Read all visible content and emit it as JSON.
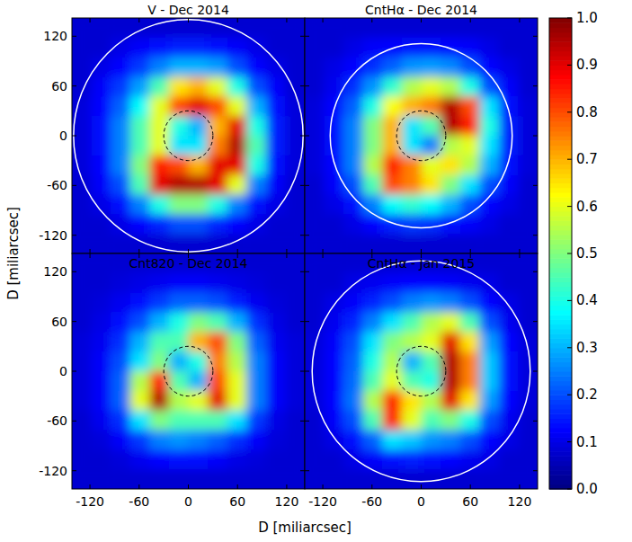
{
  "chart_data": {
    "type": "heatmap",
    "xlabel": "D [miliarcsec]",
    "ylabel": "D [miliarcsec]",
    "xlim": [
      -142,
      142
    ],
    "ylim": [
      -142,
      142
    ],
    "xticks": [
      -120,
      -60,
      0,
      60,
      120
    ],
    "yticks": [
      -120,
      -60,
      0,
      60,
      120
    ],
    "colorbar_range": [
      0,
      1
    ],
    "colorbar_ticks": [
      {
        "value": 0,
        "label": "0.0"
      },
      {
        "value": 0.1,
        "label": "0.1"
      },
      {
        "value": 0.2,
        "label": "0.2"
      },
      {
        "value": 0.3,
        "label": "0.3"
      },
      {
        "value": 0.4,
        "label": "0.4"
      },
      {
        "value": 0.5,
        "label": "0.5"
      },
      {
        "value": 0.6,
        "label": "0.6"
      },
      {
        "value": 0.7,
        "label": "0.7"
      },
      {
        "value": 0.8,
        "label": "0.8"
      },
      {
        "value": 0.9,
        "label": "0.9"
      },
      {
        "value": 1,
        "label": "1.0"
      }
    ],
    "panels": [
      {
        "title": "V - Dec 2014",
        "circle_radius": 140,
        "mask_radius": 30,
        "cells": [
          [
            0.08,
            0.08,
            0.08,
            0.08,
            0.08,
            0.08,
            0.08,
            0.08,
            0.08,
            0.08,
            0.08,
            0.08
          ],
          [
            0.08,
            0.08,
            0.1,
            0.12,
            0.14,
            0.15,
            0.15,
            0.14,
            0.12,
            0.1,
            0.08,
            0.08
          ],
          [
            0.08,
            0.1,
            0.13,
            0.18,
            0.25,
            0.3,
            0.3,
            0.28,
            0.2,
            0.13,
            0.1,
            0.08
          ],
          [
            0.08,
            0.12,
            0.18,
            0.28,
            0.45,
            0.65,
            0.7,
            0.6,
            0.4,
            0.2,
            0.12,
            0.08
          ],
          [
            0.09,
            0.13,
            0.22,
            0.38,
            0.6,
            0.8,
            0.9,
            0.8,
            0.6,
            0.3,
            0.14,
            0.09
          ],
          [
            0.09,
            0.14,
            0.25,
            0.45,
            0.6,
            0.4,
            0.3,
            0.7,
            0.9,
            0.4,
            0.15,
            0.09
          ],
          [
            0.09,
            0.14,
            0.25,
            0.45,
            0.6,
            0.35,
            0.35,
            0.75,
            0.95,
            0.45,
            0.15,
            0.09
          ],
          [
            0.09,
            0.13,
            0.25,
            0.5,
            0.85,
            0.8,
            0.7,
            0.9,
            0.9,
            0.4,
            0.14,
            0.09
          ],
          [
            0.08,
            0.12,
            0.2,
            0.45,
            0.9,
            0.95,
            0.95,
            0.9,
            0.6,
            0.25,
            0.12,
            0.08
          ],
          [
            0.08,
            0.1,
            0.14,
            0.25,
            0.4,
            0.5,
            0.5,
            0.4,
            0.25,
            0.14,
            0.1,
            0.08
          ],
          [
            0.08,
            0.08,
            0.1,
            0.13,
            0.16,
            0.2,
            0.2,
            0.16,
            0.13,
            0.1,
            0.08,
            0.08
          ],
          [
            0.08,
            0.08,
            0.08,
            0.08,
            0.08,
            0.08,
            0.08,
            0.08,
            0.08,
            0.08,
            0.08,
            0.08
          ]
        ]
      },
      {
        "title": "CntHα - Dec 2014",
        "circle_radius": 111,
        "mask_radius": 30,
        "cells": [
          [
            0.08,
            0.08,
            0.08,
            0.08,
            0.08,
            0.08,
            0.08,
            0.08,
            0.08,
            0.08,
            0.08,
            0.08
          ],
          [
            0.08,
            0.08,
            0.1,
            0.12,
            0.13,
            0.14,
            0.14,
            0.13,
            0.12,
            0.1,
            0.08,
            0.08
          ],
          [
            0.08,
            0.1,
            0.13,
            0.17,
            0.22,
            0.27,
            0.28,
            0.26,
            0.2,
            0.13,
            0.1,
            0.08
          ],
          [
            0.08,
            0.11,
            0.17,
            0.27,
            0.42,
            0.55,
            0.6,
            0.55,
            0.4,
            0.2,
            0.12,
            0.08
          ],
          [
            0.09,
            0.13,
            0.22,
            0.4,
            0.62,
            0.7,
            0.75,
            0.95,
            0.8,
            0.35,
            0.14,
            0.09
          ],
          [
            0.09,
            0.14,
            0.25,
            0.5,
            0.7,
            0.35,
            0.45,
            0.95,
            0.85,
            0.4,
            0.15,
            0.09
          ],
          [
            0.09,
            0.14,
            0.25,
            0.5,
            0.7,
            0.35,
            0.25,
            0.55,
            0.6,
            0.35,
            0.15,
            0.09
          ],
          [
            0.09,
            0.13,
            0.25,
            0.55,
            0.85,
            0.75,
            0.6,
            0.65,
            0.55,
            0.3,
            0.14,
            0.09
          ],
          [
            0.08,
            0.12,
            0.2,
            0.45,
            0.8,
            0.75,
            0.65,
            0.5,
            0.35,
            0.2,
            0.12,
            0.08
          ],
          [
            0.08,
            0.1,
            0.14,
            0.25,
            0.38,
            0.42,
            0.38,
            0.3,
            0.2,
            0.13,
            0.1,
            0.08
          ],
          [
            0.08,
            0.08,
            0.1,
            0.13,
            0.16,
            0.18,
            0.17,
            0.14,
            0.12,
            0.1,
            0.08,
            0.08
          ],
          [
            0.08,
            0.08,
            0.08,
            0.08,
            0.08,
            0.08,
            0.08,
            0.08,
            0.08,
            0.08,
            0.08,
            0.08
          ]
        ]
      },
      {
        "title": "Cnt820 - Dec 2014",
        "circle_radius": null,
        "mask_radius": 30,
        "cells": [
          [
            0.08,
            0.08,
            0.08,
            0.08,
            0.08,
            0.08,
            0.08,
            0.08,
            0.08,
            0.08,
            0.08,
            0.08
          ],
          [
            0.08,
            0.08,
            0.09,
            0.1,
            0.11,
            0.12,
            0.12,
            0.11,
            0.1,
            0.09,
            0.08,
            0.08
          ],
          [
            0.08,
            0.09,
            0.11,
            0.14,
            0.18,
            0.22,
            0.22,
            0.2,
            0.15,
            0.11,
            0.09,
            0.08
          ],
          [
            0.08,
            0.1,
            0.14,
            0.2,
            0.3,
            0.4,
            0.5,
            0.45,
            0.3,
            0.17,
            0.1,
            0.08
          ],
          [
            0.09,
            0.11,
            0.17,
            0.3,
            0.45,
            0.45,
            0.7,
            0.8,
            0.5,
            0.22,
            0.11,
            0.09
          ],
          [
            0.09,
            0.12,
            0.2,
            0.35,
            0.5,
            0.3,
            0.4,
            0.75,
            0.55,
            0.25,
            0.12,
            0.09
          ],
          [
            0.09,
            0.12,
            0.22,
            0.55,
            0.85,
            0.45,
            0.3,
            0.8,
            0.6,
            0.25,
            0.12,
            0.09
          ],
          [
            0.09,
            0.12,
            0.22,
            0.6,
            0.95,
            0.55,
            0.6,
            0.9,
            0.6,
            0.25,
            0.12,
            0.09
          ],
          [
            0.08,
            0.11,
            0.17,
            0.35,
            0.5,
            0.45,
            0.45,
            0.45,
            0.35,
            0.18,
            0.1,
            0.08
          ],
          [
            0.08,
            0.09,
            0.12,
            0.18,
            0.25,
            0.27,
            0.25,
            0.22,
            0.17,
            0.12,
            0.09,
            0.08
          ],
          [
            0.08,
            0.08,
            0.09,
            0.11,
            0.13,
            0.14,
            0.14,
            0.12,
            0.1,
            0.09,
            0.08,
            0.08
          ],
          [
            0.08,
            0.08,
            0.08,
            0.08,
            0.08,
            0.08,
            0.08,
            0.08,
            0.08,
            0.08,
            0.08,
            0.08
          ]
        ]
      },
      {
        "title": "CntHα - Jan 2015",
        "circle_radius": 133,
        "mask_radius": 30,
        "cells": [
          [
            0.08,
            0.08,
            0.08,
            0.08,
            0.08,
            0.08,
            0.08,
            0.08,
            0.08,
            0.08,
            0.08,
            0.08
          ],
          [
            0.08,
            0.08,
            0.1,
            0.11,
            0.12,
            0.13,
            0.13,
            0.12,
            0.11,
            0.1,
            0.08,
            0.08
          ],
          [
            0.08,
            0.1,
            0.12,
            0.16,
            0.2,
            0.25,
            0.27,
            0.25,
            0.2,
            0.13,
            0.1,
            0.08
          ],
          [
            0.08,
            0.11,
            0.16,
            0.25,
            0.35,
            0.45,
            0.55,
            0.6,
            0.45,
            0.2,
            0.11,
            0.08
          ],
          [
            0.09,
            0.12,
            0.2,
            0.35,
            0.5,
            0.55,
            0.6,
            0.9,
            0.65,
            0.28,
            0.13,
            0.09
          ],
          [
            0.09,
            0.13,
            0.22,
            0.4,
            0.55,
            0.3,
            0.45,
            0.95,
            0.75,
            0.32,
            0.14,
            0.09
          ],
          [
            0.09,
            0.13,
            0.23,
            0.45,
            0.6,
            0.45,
            0.4,
            0.95,
            0.75,
            0.32,
            0.14,
            0.09
          ],
          [
            0.09,
            0.13,
            0.24,
            0.55,
            0.85,
            0.65,
            0.55,
            0.9,
            0.65,
            0.28,
            0.13,
            0.09
          ],
          [
            0.08,
            0.12,
            0.2,
            0.45,
            0.85,
            0.6,
            0.45,
            0.5,
            0.4,
            0.2,
            0.11,
            0.08
          ],
          [
            0.08,
            0.1,
            0.14,
            0.22,
            0.35,
            0.32,
            0.27,
            0.25,
            0.2,
            0.13,
            0.1,
            0.08
          ],
          [
            0.08,
            0.08,
            0.1,
            0.12,
            0.14,
            0.15,
            0.14,
            0.13,
            0.11,
            0.1,
            0.08,
            0.08
          ],
          [
            0.08,
            0.08,
            0.08,
            0.08,
            0.08,
            0.08,
            0.08,
            0.08,
            0.08,
            0.08,
            0.08,
            0.08
          ]
        ]
      }
    ]
  }
}
